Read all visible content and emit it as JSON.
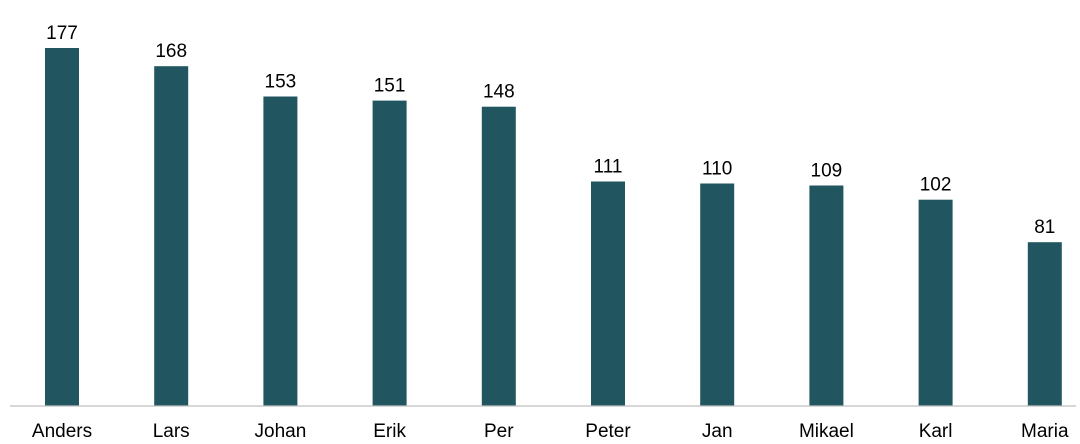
{
  "chart_data": {
    "type": "bar",
    "categories": [
      "Anders",
      "Lars",
      "Johan",
      "Erik",
      "Per",
      "Peter",
      "Jan",
      "Mikael",
      "Karl",
      "Maria"
    ],
    "values": [
      177,
      168,
      153,
      151,
      148,
      111,
      110,
      109,
      102,
      81
    ],
    "data_labels": [
      "177",
      "168",
      "153",
      "151",
      "148",
      "111",
      "110",
      "109",
      "102",
      "81"
    ],
    "title": "",
    "xlabel": "",
    "ylabel": "",
    "ylim": [
      0,
      177
    ],
    "grid": false,
    "legend": "none",
    "bar_color": "#215660"
  }
}
